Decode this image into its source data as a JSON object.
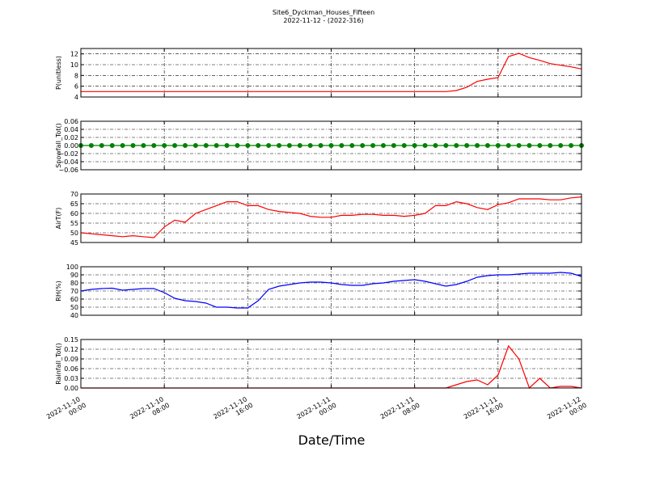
{
  "chart_data": {
    "type": "line",
    "title": "Site6_Dyckman_Houses_Fifteen",
    "subtitle": "2022-11-12 - (2022-316)",
    "xlabel": "Date/Time",
    "grid": true,
    "x": [
      "2022-11-10 00:00",
      "2022-11-10 01:00",
      "2022-11-10 02:00",
      "2022-11-10 03:00",
      "2022-11-10 04:00",
      "2022-11-10 05:00",
      "2022-11-10 06:00",
      "2022-11-10 07:00",
      "2022-11-10 08:00",
      "2022-11-10 09:00",
      "2022-11-10 10:00",
      "2022-11-10 11:00",
      "2022-11-10 12:00",
      "2022-11-10 13:00",
      "2022-11-10 14:00",
      "2022-11-10 15:00",
      "2022-11-10 16:00",
      "2022-11-10 17:00",
      "2022-11-10 18:00",
      "2022-11-10 19:00",
      "2022-11-10 20:00",
      "2022-11-10 21:00",
      "2022-11-10 22:00",
      "2022-11-10 23:00",
      "2022-11-11 00:00",
      "2022-11-11 01:00",
      "2022-11-11 02:00",
      "2022-11-11 03:00",
      "2022-11-11 04:00",
      "2022-11-11 05:00",
      "2022-11-11 06:00",
      "2022-11-11 07:00",
      "2022-11-11 08:00",
      "2022-11-11 09:00",
      "2022-11-11 10:00",
      "2022-11-11 11:00",
      "2022-11-11 12:00",
      "2022-11-11 13:00",
      "2022-11-11 14:00",
      "2022-11-11 15:00",
      "2022-11-11 16:00",
      "2022-11-11 17:00",
      "2022-11-11 18:00",
      "2022-11-11 19:00",
      "2022-11-11 20:00",
      "2022-11-11 21:00",
      "2022-11-11 22:00",
      "2022-11-11 23:00",
      "2022-11-12 00:00"
    ],
    "xlim": [
      "2022-11-10 00:00",
      "2022-11-12 00:00"
    ],
    "xticks": [
      "2022-11-10 00:00",
      "2022-11-10 08:00",
      "2022-11-10 16:00",
      "2022-11-11 00:00",
      "2022-11-11 08:00",
      "2022-11-11 16:00",
      "2022-11-12 00:00"
    ],
    "panels": [
      {
        "ylabel": "P(unitless)",
        "ylim": [
          4,
          13
        ],
        "yticks": [
          4,
          6,
          8,
          10,
          12
        ],
        "series": [
          {
            "color": "#ff0000",
            "values": [
              5,
              5,
              5,
              5,
              5,
              5,
              5,
              5,
              5,
              5,
              5,
              5,
              5,
              5,
              5,
              5,
              5,
              5,
              5,
              5,
              5,
              5,
              5,
              5,
              5,
              5,
              5,
              5,
              5,
              5,
              5,
              5,
              5,
              5,
              5,
              5,
              5.2,
              5.8,
              6.9,
              7.3,
              7.6,
              11.5,
              12.1,
              11.3,
              10.8,
              10.2,
              9.9,
              9.6,
              9.2
            ]
          }
        ]
      },
      {
        "ylabel": "Snowfall_Tot()",
        "ylim": [
          -0.06,
          0.06
        ],
        "yticks": [
          {
            "value": -0.06,
            "label": "−0.06"
          },
          {
            "value": -0.04,
            "label": "−0.04"
          },
          {
            "value": -0.02,
            "label": "−0.02"
          },
          {
            "value": 0,
            "label": "0.00"
          },
          {
            "value": 0.02,
            "label": "0.02"
          },
          {
            "value": 0.04,
            "label": "0.04"
          },
          {
            "value": 0.06,
            "label": "0.06"
          }
        ],
        "series": [
          {
            "color": "#008000",
            "markers": true,
            "values": [
              0,
              0,
              0,
              0,
              0,
              0,
              0,
              0,
              0,
              0,
              0,
              0,
              0,
              0,
              0,
              0,
              0,
              0,
              0,
              0,
              0,
              0,
              0,
              0,
              0,
              0,
              0,
              0,
              0,
              0,
              0,
              0,
              0,
              0,
              0,
              0,
              0,
              0,
              0,
              0,
              0,
              0,
              0,
              0,
              0,
              0,
              0,
              0,
              0
            ]
          }
        ]
      },
      {
        "ylabel": "AirT(F)",
        "ylim": [
          45,
          70
        ],
        "yticks": [
          45,
          50,
          55,
          60,
          65,
          70
        ],
        "series": [
          {
            "color": "#ff0000",
            "values": [
              50,
              49.5,
              49,
              48.5,
              48,
              48.5,
              48,
              47.5,
              53,
              56.5,
              55.5,
              60,
              62,
              64,
              66,
              66,
              64,
              64,
              62,
              61,
              60.5,
              60,
              58.5,
              58,
              58,
              59,
              59,
              59.5,
              59.5,
              59,
              59,
              58.5,
              59,
              60,
              64,
              64,
              66,
              65,
              63,
              62,
              64.5,
              65.5,
              67.5,
              67.5,
              67.5,
              67,
              67,
              68,
              68.5
            ]
          }
        ]
      },
      {
        "ylabel": "RH(%)",
        "ylim": [
          40,
          100
        ],
        "yticks": [
          40,
          50,
          60,
          70,
          80,
          90,
          100
        ],
        "series": [
          {
            "color": "#0000ff",
            "values": [
              70,
              72,
              73,
              73.5,
              71,
              72,
              73,
              73,
              68,
              61,
              58,
              57,
              55,
              50,
              50,
              49,
              49,
              58,
              72,
              76,
              78,
              80,
              81,
              81,
              80,
              78,
              77,
              77,
              79,
              80,
              82,
              83,
              84,
              82,
              79,
              76,
              78,
              82,
              87,
              89,
              90,
              90,
              91,
              92,
              92,
              92,
              93,
              92,
              88
            ]
          }
        ]
      },
      {
        "ylabel": "Rainfall_Tot()",
        "ylim": [
          0,
          0.15
        ],
        "yticks": [
          {
            "value": 0,
            "label": "0.00"
          },
          0.03,
          0.06,
          0.09,
          0.12,
          0.15
        ],
        "series": [
          {
            "color": "#ff0000",
            "values": [
              0,
              0,
              0,
              0,
              0,
              0,
              0,
              0,
              0,
              0,
              0,
              0,
              0,
              0,
              0,
              0,
              0,
              0,
              0,
              0,
              0,
              0,
              0,
              0,
              0,
              0,
              0,
              0,
              0,
              0,
              0,
              0,
              0,
              0,
              0,
              0,
              0.01,
              0.02,
              0.025,
              0.01,
              0.04,
              0.13,
              0.09,
              0,
              0.03,
              0,
              0.005,
              0.005,
              0
            ]
          }
        ]
      }
    ]
  }
}
